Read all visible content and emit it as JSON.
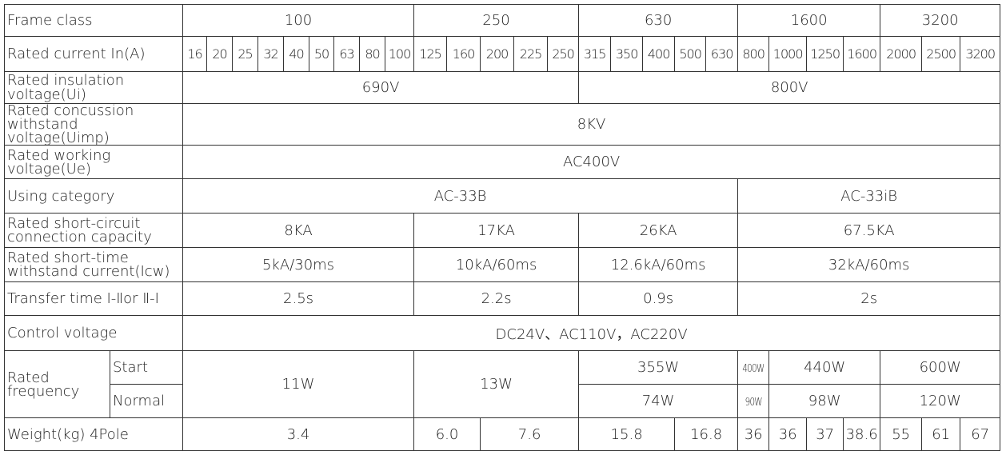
{
  "table": {
    "rows": [
      {
        "label": "Frame class",
        "cells": [
          "100",
          "250",
          "630",
          "1600",
          "3200"
        ]
      },
      {
        "label": "Rated current In(A)",
        "cells": [
          "16",
          "20",
          "25",
          "32",
          "40",
          "50",
          "63",
          "80",
          "100",
          "125",
          "160",
          "200",
          "225",
          "250",
          "315",
          "350",
          "400",
          "500",
          "630",
          "800",
          "1000",
          "1250",
          "1600",
          "2000",
          "2500",
          "3200"
        ]
      },
      {
        "label": "Rated insulation voltage(Ui)",
        "cells": [
          "690V",
          "800V"
        ]
      },
      {
        "label": "Rated concussion withstand voltage(Uimp)",
        "cells": [
          "8KV"
        ]
      },
      {
        "label": "Rated working voltage(Ue)",
        "cells": [
          "AC400V"
        ]
      },
      {
        "label": "Using category",
        "cells": [
          "AC-33B",
          "AC-33iB"
        ]
      },
      {
        "label": "Rated short-circuit connection capacity",
        "cells": [
          "8KA",
          "17KA",
          "26KA",
          "67.5KA"
        ]
      },
      {
        "label": "Rated short-time withstand current(Icw)",
        "cells": [
          "5kA/30ms",
          "10kA/60ms",
          "12.6kA/60ms",
          "32kA/60ms"
        ]
      },
      {
        "label": "Transfer time Ⅰ-Ⅱor Ⅱ-Ⅰ",
        "cells": [
          "2.5s",
          "2.2s",
          "0.9s",
          "2s"
        ]
      },
      {
        "label": "Control voltage",
        "cells": [
          "DC24V、AC110V，AC220V"
        ]
      },
      {
        "label": "Rated frequency",
        "start": {
          "label": "Start",
          "cells": [
            "11W",
            "13W",
            "355W",
            "400W",
            "440W",
            "600W"
          ]
        },
        "normal": {
          "label": "Normal",
          "cells": [
            "74W",
            "90W",
            "98W",
            "120W"
          ]
        }
      },
      {
        "label": "Weight(kg) 4Pole",
        "cells": [
          "3.4",
          "6.0",
          "7.6",
          "15.8",
          "16.8",
          "36",
          "36",
          "37",
          "38.6",
          "55",
          "61",
          "67"
        ]
      }
    ]
  }
}
